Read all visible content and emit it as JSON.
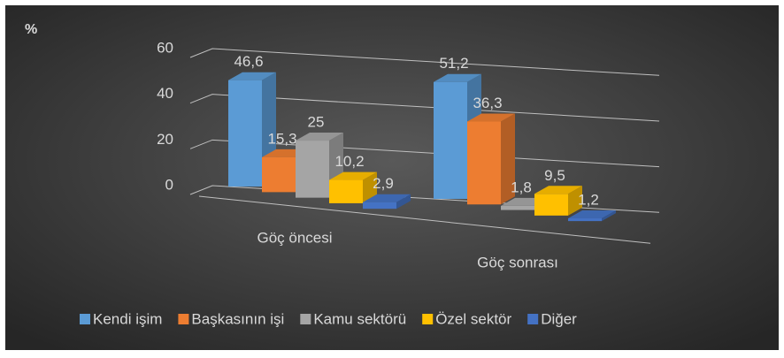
{
  "chart_data": {
    "type": "bar3d",
    "y_label": "%",
    "categories": [
      "Göç öncesi",
      "Göç sonrası"
    ],
    "series": [
      {
        "name": "Kendi işim",
        "color": "#5b9bd5",
        "values": [
          46.6,
          51.2
        ],
        "value_labels": [
          "46,6",
          "51,2"
        ]
      },
      {
        "name": "Başkasının işi",
        "color": "#ed7d31",
        "values": [
          15.3,
          36.3
        ],
        "value_labels": [
          "15,3",
          "36,3"
        ]
      },
      {
        "name": "Kamu sektörü",
        "color": "#a5a5a5",
        "values": [
          25,
          1.8
        ],
        "value_labels": [
          "25",
          "1,8"
        ]
      },
      {
        "name": "Özel sektör",
        "color": "#ffc000",
        "values": [
          10.2,
          9.5
        ],
        "value_labels": [
          "10,2",
          "9,5"
        ]
      },
      {
        "name": "Diğer",
        "color": "#4472c4",
        "values": [
          2.9,
          1.2
        ],
        "value_labels": [
          "2,9",
          "1,2"
        ]
      }
    ],
    "ylim": [
      0,
      60
    ],
    "yticks": [
      0,
      20,
      40,
      60
    ],
    "grid": true,
    "legend": "bottom"
  }
}
